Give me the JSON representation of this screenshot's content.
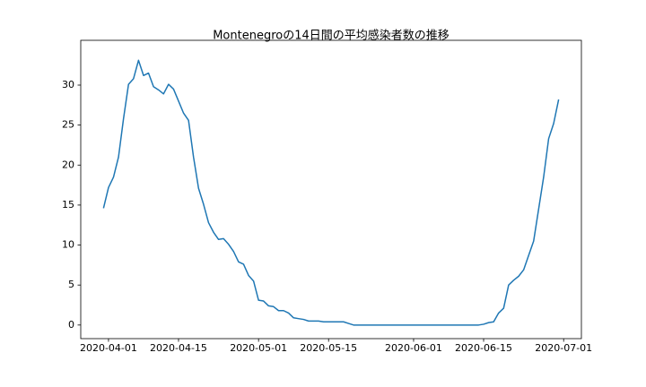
{
  "chart_data": {
    "type": "line",
    "title": "Montenegroの14日間の平均感染者数の推移",
    "x": [
      "2020-03-31",
      "2020-04-01",
      "2020-04-02",
      "2020-04-03",
      "2020-04-04",
      "2020-04-05",
      "2020-04-06",
      "2020-04-07",
      "2020-04-08",
      "2020-04-09",
      "2020-04-10",
      "2020-04-11",
      "2020-04-12",
      "2020-04-13",
      "2020-04-14",
      "2020-04-15",
      "2020-04-16",
      "2020-04-17",
      "2020-04-18",
      "2020-04-19",
      "2020-04-20",
      "2020-04-21",
      "2020-04-22",
      "2020-04-23",
      "2020-04-24",
      "2020-04-25",
      "2020-04-26",
      "2020-04-27",
      "2020-04-28",
      "2020-04-29",
      "2020-04-30",
      "2020-05-01",
      "2020-05-02",
      "2020-05-03",
      "2020-05-04",
      "2020-05-05",
      "2020-05-06",
      "2020-05-07",
      "2020-05-08",
      "2020-05-09",
      "2020-05-10",
      "2020-05-11",
      "2020-05-12",
      "2020-05-13",
      "2020-05-14",
      "2020-05-15",
      "2020-05-16",
      "2020-05-17",
      "2020-05-18",
      "2020-05-19",
      "2020-05-20",
      "2020-05-21",
      "2020-05-22",
      "2020-05-23",
      "2020-05-24",
      "2020-05-25",
      "2020-05-26",
      "2020-05-27",
      "2020-05-28",
      "2020-05-29",
      "2020-05-30",
      "2020-05-31",
      "2020-06-01",
      "2020-06-02",
      "2020-06-03",
      "2020-06-04",
      "2020-06-05",
      "2020-06-06",
      "2020-06-07",
      "2020-06-08",
      "2020-06-09",
      "2020-06-10",
      "2020-06-11",
      "2020-06-12",
      "2020-06-13",
      "2020-06-14",
      "2020-06-15",
      "2020-06-16",
      "2020-06-17",
      "2020-06-18",
      "2020-06-19",
      "2020-06-20",
      "2020-06-21",
      "2020-06-22",
      "2020-06-23",
      "2020-06-24",
      "2020-06-25",
      "2020-06-26",
      "2020-06-27",
      "2020-06-28",
      "2020-06-29",
      "2020-06-30"
    ],
    "series": [
      {
        "color": "#1f77b4",
        "values": [
          14.6,
          17.2,
          18.5,
          21,
          25.8,
          30.1,
          30.8,
          33.1,
          31.2,
          31.5,
          29.8,
          29.4,
          28.9,
          30.1,
          29.5,
          28,
          26.5,
          25.6,
          21,
          17.1,
          15.1,
          12.8,
          11.6,
          10.7,
          10.8,
          10.1,
          9.2,
          7.9,
          7.6,
          6.2,
          5.5,
          3.1,
          3.0,
          2.4,
          2.3,
          1.8,
          1.8,
          1.5,
          0.9,
          0.8,
          0.7,
          0.5,
          0.5,
          0.5,
          0.4,
          0.4,
          0.4,
          0.4,
          0.4,
          0.2,
          0,
          0,
          0,
          0,
          0,
          0,
          0,
          0,
          0,
          0,
          0,
          0,
          0,
          0,
          0,
          0,
          0,
          0,
          0,
          0,
          0,
          0,
          0,
          0,
          0,
          0,
          0.1,
          0.3,
          0.4,
          1.5,
          2.1,
          5.0,
          5.6,
          6.1,
          6.9,
          8.7,
          10.5,
          14.5,
          18.5,
          23.3,
          25.2,
          28.2
        ]
      }
    ],
    "xlim": [
      "2020-03-26T10:48:00Z",
      "2020-07-04T13:12:00Z"
    ],
    "xticks": [
      "2020-04-01",
      "2020-04-15",
      "2020-05-01",
      "2020-05-15",
      "2020-06-01",
      "2020-06-15",
      "2020-07-01"
    ],
    "ylim": [
      -1.7,
      35.6
    ],
    "yticks": [
      0,
      5,
      10,
      15,
      20,
      25,
      30
    ]
  }
}
